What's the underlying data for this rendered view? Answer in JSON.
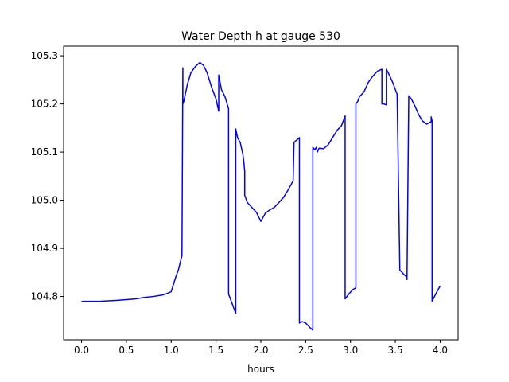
{
  "chart_data": {
    "type": "line",
    "title": "Water Depth h at gauge 530",
    "xlabel": "hours",
    "ylabel": "",
    "xlim": [
      -0.2,
      4.2
    ],
    "ylim": [
      104.71,
      105.32
    ],
    "xticks": [
      0.0,
      0.5,
      1.0,
      1.5,
      2.0,
      2.5,
      3.0,
      3.5,
      4.0
    ],
    "xtick_labels": [
      "0.0",
      "0.5",
      "1.0",
      "1.5",
      "2.0",
      "2.5",
      "3.0",
      "3.5",
      "4.0"
    ],
    "yticks": [
      104.8,
      104.9,
      105.0,
      105.1,
      105.2,
      105.3
    ],
    "ytick_labels": [
      "104.8",
      "104.9",
      "105.0",
      "105.1",
      "105.2",
      "105.3"
    ],
    "grid": false,
    "series": [
      {
        "color": "#0000ff",
        "x": [
          0.0,
          0.2,
          0.4,
          0.6,
          0.7,
          0.8,
          0.9,
          0.95,
          1.0,
          1.05,
          1.08,
          1.12,
          1.13,
          1.13,
          1.14,
          1.18,
          1.22,
          1.27,
          1.32,
          1.36,
          1.4,
          1.45,
          1.5,
          1.53,
          1.53,
          1.56,
          1.6,
          1.64,
          1.64,
          1.68,
          1.72,
          1.72,
          1.74,
          1.77,
          1.8,
          1.81,
          1.82,
          1.82,
          1.85,
          1.9,
          1.95,
          2.0,
          2.05,
          2.1,
          2.15,
          2.2,
          2.25,
          2.3,
          2.33,
          2.36,
          2.37,
          2.4,
          2.43,
          2.43,
          2.46,
          2.5,
          2.55,
          2.58,
          2.58,
          2.6,
          2.62,
          2.63,
          2.65,
          2.7,
          2.75,
          2.8,
          2.85,
          2.9,
          2.94,
          2.94,
          2.98,
          3.03,
          3.06,
          3.06,
          3.08,
          3.1,
          3.15,
          3.2,
          3.25,
          3.3,
          3.35,
          3.35,
          3.37,
          3.4,
          3.4,
          3.42,
          3.47,
          3.52,
          3.55,
          3.6,
          3.63,
          3.63,
          3.65,
          3.68,
          3.72,
          3.76,
          3.8,
          3.85,
          3.9,
          3.9,
          3.91,
          3.91,
          3.95,
          4.0
        ],
        "y": [
          104.79,
          104.79,
          104.792,
          104.795,
          104.798,
          104.8,
          104.803,
          104.806,
          104.81,
          104.84,
          104.855,
          104.885,
          105.275,
          105.2,
          105.205,
          105.24,
          105.265,
          105.278,
          105.286,
          105.28,
          105.265,
          105.235,
          105.21,
          105.185,
          105.26,
          105.23,
          105.215,
          105.19,
          104.805,
          104.785,
          104.765,
          105.148,
          105.13,
          105.12,
          105.095,
          105.08,
          105.06,
          105.01,
          104.995,
          104.985,
          104.975,
          104.956,
          104.973,
          104.98,
          104.985,
          104.995,
          105.005,
          105.02,
          105.03,
          105.04,
          105.12,
          105.125,
          105.13,
          104.745,
          104.748,
          104.745,
          104.735,
          104.73,
          105.11,
          105.105,
          105.11,
          105.1,
          105.108,
          105.107,
          105.115,
          105.13,
          105.145,
          105.155,
          105.175,
          104.795,
          104.805,
          104.815,
          104.818,
          105.2,
          105.205,
          105.215,
          105.225,
          105.245,
          105.258,
          105.268,
          105.272,
          105.2,
          105.2,
          105.198,
          105.272,
          105.265,
          105.245,
          105.22,
          104.855,
          104.845,
          104.84,
          104.835,
          105.217,
          105.21,
          105.195,
          105.178,
          105.165,
          105.158,
          105.163,
          105.173,
          105.165,
          104.79,
          104.805,
          104.822
        ]
      }
    ]
  }
}
